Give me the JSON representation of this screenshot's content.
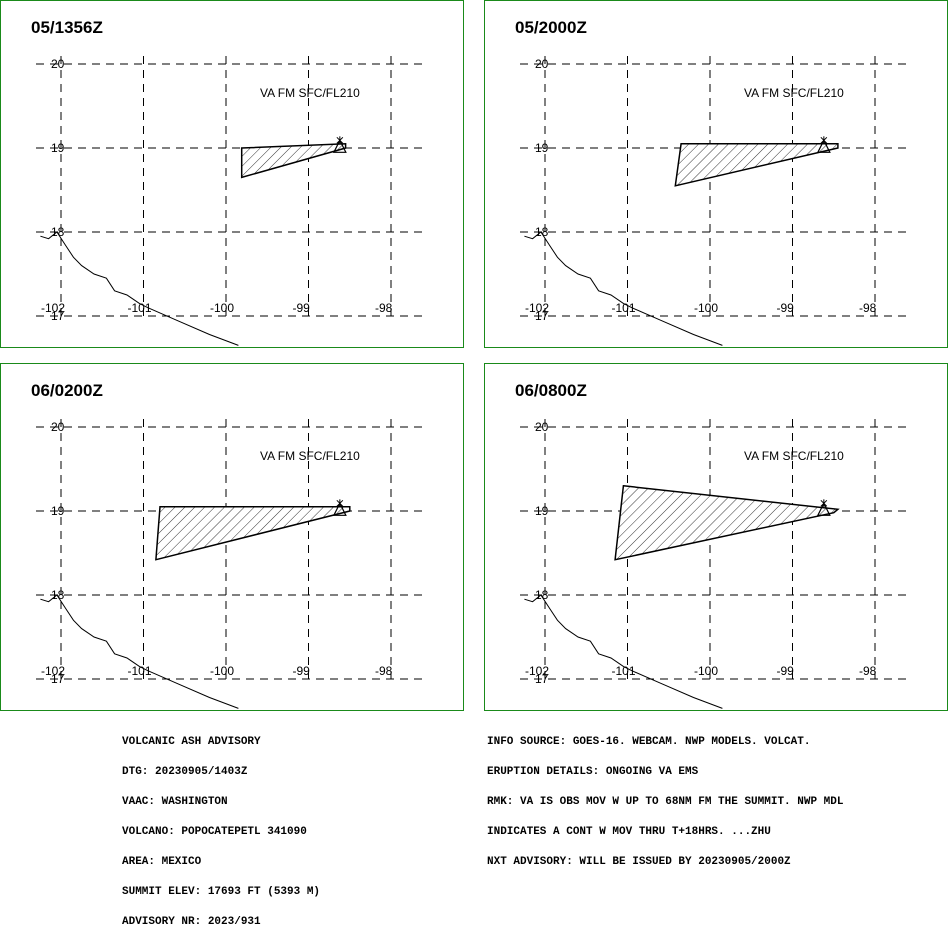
{
  "panels": [
    {
      "time": "05/1356Z",
      "label": "VA FM SFC/FL210",
      "polygon": [
        [
          -99.81,
          19.0
        ],
        [
          -98.55,
          19.05
        ],
        [
          -98.55,
          19.0
        ],
        [
          -99.81,
          18.65
        ]
      ]
    },
    {
      "time": "05/2000Z",
      "label": "VA FM SFC/FL210",
      "polygon": [
        [
          -100.35,
          19.05
        ],
        [
          -98.45,
          19.05
        ],
        [
          -98.45,
          19.0
        ],
        [
          -100.42,
          18.55
        ]
      ]
    },
    {
      "time": "06/0200Z",
      "label": "VA FM SFC/FL210",
      "polygon": [
        [
          -100.8,
          19.05
        ],
        [
          -98.5,
          19.05
        ],
        [
          -98.5,
          19.0
        ],
        [
          -100.85,
          18.42
        ]
      ]
    },
    {
      "time": "06/0800Z",
      "label": "VA FM SFC/FL210",
      "polygon": [
        [
          -101.05,
          19.3
        ],
        [
          -98.45,
          19.02
        ],
        [
          -98.5,
          18.98
        ],
        [
          -101.15,
          18.42
        ]
      ]
    }
  ],
  "map": {
    "lon_ticks": [
      "-102",
      "-101",
      "-100",
      "-99",
      "-98"
    ],
    "lat_ticks": [
      "20",
      "19",
      "18",
      "17"
    ],
    "volcano": {
      "lon": -98.62,
      "lat": 19.02
    },
    "coast": [
      [
        -102.25,
        17.95
      ],
      [
        -102.15,
        17.92
      ],
      [
        -102.05,
        18.0
      ],
      [
        -101.95,
        17.85
      ],
      [
        -101.85,
        17.7
      ],
      [
        -101.75,
        17.6
      ],
      [
        -101.6,
        17.5
      ],
      [
        -101.45,
        17.45
      ],
      [
        -101.35,
        17.3
      ],
      [
        -101.2,
        17.25
      ],
      [
        -101.05,
        17.15
      ],
      [
        -100.95,
        17.1
      ],
      [
        -100.6,
        16.95
      ],
      [
        -100.2,
        16.78
      ],
      [
        -99.85,
        16.65
      ]
    ]
  },
  "advisory_left": [
    "VOLCANIC ASH ADVISORY",
    "DTG: 20230905/1403Z",
    "VAAC: WASHINGTON",
    "VOLCANO: POPOCATEPETL 341090",
    "AREA: MEXICO",
    "SUMMIT ELEV: 17693 FT (5393 M)",
    "ADVISORY NR: 2023/931"
  ],
  "advisory_right": [
    "INFO SOURCE: GOES-16. WEBCAM. NWP MODELS. VOLCAT.",
    "ERUPTION DETAILS: ONGOING VA EMS",
    "RMK: VA IS OBS MOV W UP TO 68NM FM THE SUMMIT. NWP MDL",
    "INDICATES A CONT W MOV THRU T+18HRS. ...ZHU",
    "NXT ADVISORY: WILL BE ISSUED BY 20230905/2000Z"
  ]
}
